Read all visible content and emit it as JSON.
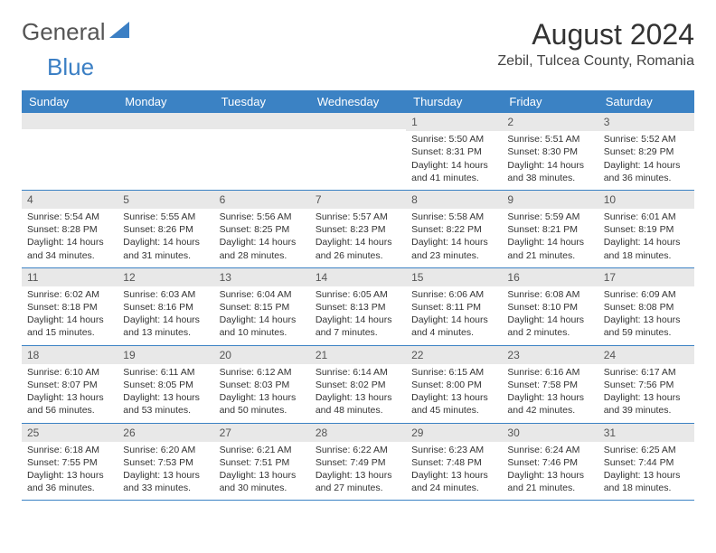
{
  "logo": {
    "brand_a": "General",
    "brand_b": "Blue"
  },
  "title": "August 2024",
  "location": "Zebil, Tulcea County, Romania",
  "colors": {
    "header_bg": "#3b82c4",
    "header_text": "#ffffff",
    "daynum_bg": "#e8e8e8",
    "rule": "#3b82c4",
    "text": "#333333",
    "logo_gray": "#555555",
    "logo_blue": "#3b7fc4"
  },
  "weekdays": [
    "Sunday",
    "Monday",
    "Tuesday",
    "Wednesday",
    "Thursday",
    "Friday",
    "Saturday"
  ],
  "weeks": [
    [
      {
        "n": "",
        "sr": "",
        "ss": "",
        "dl": ""
      },
      {
        "n": "",
        "sr": "",
        "ss": "",
        "dl": ""
      },
      {
        "n": "",
        "sr": "",
        "ss": "",
        "dl": ""
      },
      {
        "n": "",
        "sr": "",
        "ss": "",
        "dl": ""
      },
      {
        "n": "1",
        "sr": "Sunrise: 5:50 AM",
        "ss": "Sunset: 8:31 PM",
        "dl": "Daylight: 14 hours and 41 minutes."
      },
      {
        "n": "2",
        "sr": "Sunrise: 5:51 AM",
        "ss": "Sunset: 8:30 PM",
        "dl": "Daylight: 14 hours and 38 minutes."
      },
      {
        "n": "3",
        "sr": "Sunrise: 5:52 AM",
        "ss": "Sunset: 8:29 PM",
        "dl": "Daylight: 14 hours and 36 minutes."
      }
    ],
    [
      {
        "n": "4",
        "sr": "Sunrise: 5:54 AM",
        "ss": "Sunset: 8:28 PM",
        "dl": "Daylight: 14 hours and 34 minutes."
      },
      {
        "n": "5",
        "sr": "Sunrise: 5:55 AM",
        "ss": "Sunset: 8:26 PM",
        "dl": "Daylight: 14 hours and 31 minutes."
      },
      {
        "n": "6",
        "sr": "Sunrise: 5:56 AM",
        "ss": "Sunset: 8:25 PM",
        "dl": "Daylight: 14 hours and 28 minutes."
      },
      {
        "n": "7",
        "sr": "Sunrise: 5:57 AM",
        "ss": "Sunset: 8:23 PM",
        "dl": "Daylight: 14 hours and 26 minutes."
      },
      {
        "n": "8",
        "sr": "Sunrise: 5:58 AM",
        "ss": "Sunset: 8:22 PM",
        "dl": "Daylight: 14 hours and 23 minutes."
      },
      {
        "n": "9",
        "sr": "Sunrise: 5:59 AM",
        "ss": "Sunset: 8:21 PM",
        "dl": "Daylight: 14 hours and 21 minutes."
      },
      {
        "n": "10",
        "sr": "Sunrise: 6:01 AM",
        "ss": "Sunset: 8:19 PM",
        "dl": "Daylight: 14 hours and 18 minutes."
      }
    ],
    [
      {
        "n": "11",
        "sr": "Sunrise: 6:02 AM",
        "ss": "Sunset: 8:18 PM",
        "dl": "Daylight: 14 hours and 15 minutes."
      },
      {
        "n": "12",
        "sr": "Sunrise: 6:03 AM",
        "ss": "Sunset: 8:16 PM",
        "dl": "Daylight: 14 hours and 13 minutes."
      },
      {
        "n": "13",
        "sr": "Sunrise: 6:04 AM",
        "ss": "Sunset: 8:15 PM",
        "dl": "Daylight: 14 hours and 10 minutes."
      },
      {
        "n": "14",
        "sr": "Sunrise: 6:05 AM",
        "ss": "Sunset: 8:13 PM",
        "dl": "Daylight: 14 hours and 7 minutes."
      },
      {
        "n": "15",
        "sr": "Sunrise: 6:06 AM",
        "ss": "Sunset: 8:11 PM",
        "dl": "Daylight: 14 hours and 4 minutes."
      },
      {
        "n": "16",
        "sr": "Sunrise: 6:08 AM",
        "ss": "Sunset: 8:10 PM",
        "dl": "Daylight: 14 hours and 2 minutes."
      },
      {
        "n": "17",
        "sr": "Sunrise: 6:09 AM",
        "ss": "Sunset: 8:08 PM",
        "dl": "Daylight: 13 hours and 59 minutes."
      }
    ],
    [
      {
        "n": "18",
        "sr": "Sunrise: 6:10 AM",
        "ss": "Sunset: 8:07 PM",
        "dl": "Daylight: 13 hours and 56 minutes."
      },
      {
        "n": "19",
        "sr": "Sunrise: 6:11 AM",
        "ss": "Sunset: 8:05 PM",
        "dl": "Daylight: 13 hours and 53 minutes."
      },
      {
        "n": "20",
        "sr": "Sunrise: 6:12 AM",
        "ss": "Sunset: 8:03 PM",
        "dl": "Daylight: 13 hours and 50 minutes."
      },
      {
        "n": "21",
        "sr": "Sunrise: 6:14 AM",
        "ss": "Sunset: 8:02 PM",
        "dl": "Daylight: 13 hours and 48 minutes."
      },
      {
        "n": "22",
        "sr": "Sunrise: 6:15 AM",
        "ss": "Sunset: 8:00 PM",
        "dl": "Daylight: 13 hours and 45 minutes."
      },
      {
        "n": "23",
        "sr": "Sunrise: 6:16 AM",
        "ss": "Sunset: 7:58 PM",
        "dl": "Daylight: 13 hours and 42 minutes."
      },
      {
        "n": "24",
        "sr": "Sunrise: 6:17 AM",
        "ss": "Sunset: 7:56 PM",
        "dl": "Daylight: 13 hours and 39 minutes."
      }
    ],
    [
      {
        "n": "25",
        "sr": "Sunrise: 6:18 AM",
        "ss": "Sunset: 7:55 PM",
        "dl": "Daylight: 13 hours and 36 minutes."
      },
      {
        "n": "26",
        "sr": "Sunrise: 6:20 AM",
        "ss": "Sunset: 7:53 PM",
        "dl": "Daylight: 13 hours and 33 minutes."
      },
      {
        "n": "27",
        "sr": "Sunrise: 6:21 AM",
        "ss": "Sunset: 7:51 PM",
        "dl": "Daylight: 13 hours and 30 minutes."
      },
      {
        "n": "28",
        "sr": "Sunrise: 6:22 AM",
        "ss": "Sunset: 7:49 PM",
        "dl": "Daylight: 13 hours and 27 minutes."
      },
      {
        "n": "29",
        "sr": "Sunrise: 6:23 AM",
        "ss": "Sunset: 7:48 PM",
        "dl": "Daylight: 13 hours and 24 minutes."
      },
      {
        "n": "30",
        "sr": "Sunrise: 6:24 AM",
        "ss": "Sunset: 7:46 PM",
        "dl": "Daylight: 13 hours and 21 minutes."
      },
      {
        "n": "31",
        "sr": "Sunrise: 6:25 AM",
        "ss": "Sunset: 7:44 PM",
        "dl": "Daylight: 13 hours and 18 minutes."
      }
    ]
  ]
}
